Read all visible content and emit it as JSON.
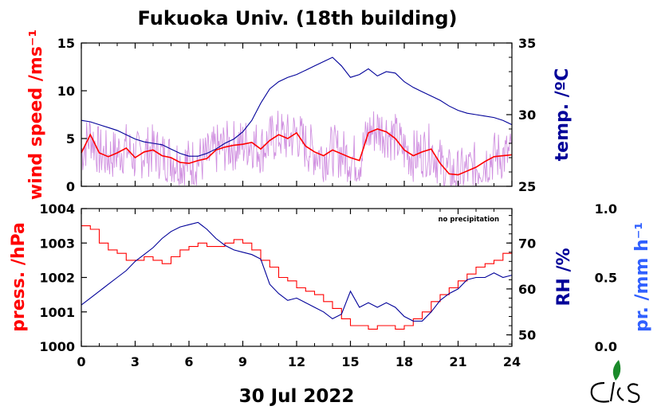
{
  "title": "Fukuoka Univ. (18th building)",
  "x_axis_label": "30 Jul 2022",
  "x_ticks": [
    "0",
    "3",
    "6",
    "9",
    "12",
    "15",
    "18",
    "21",
    "24"
  ],
  "colors": {
    "wind": "#ff0000",
    "wind_raw": "#d090e0",
    "temp": "#000099",
    "pressure": "#ff0000",
    "rh": "#000099",
    "precip": "#3060ff"
  },
  "logo": "CKES",
  "chart_data": [
    {
      "type": "line",
      "panel": "top",
      "xlim": [
        0,
        24
      ],
      "left_axis": {
        "label": "wind speed /ms⁻¹",
        "ylim": [
          0,
          15
        ],
        "ticks": [
          "0",
          "5",
          "10",
          "15"
        ]
      },
      "right_axis": {
        "label": "temp. /ºC",
        "ylim": [
          25,
          35
        ],
        "ticks": [
          "25",
          "30",
          "35"
        ]
      },
      "series": [
        {
          "axis": "left",
          "color": "#ff0000",
          "x": [
            0,
            0.5,
            1,
            1.5,
            2,
            2.5,
            3,
            3.5,
            4,
            4.5,
            5,
            5.5,
            6,
            6.5,
            7,
            7.5,
            8,
            8.5,
            9,
            9.5,
            10,
            10.5,
            11,
            11.5,
            12,
            12.5,
            13,
            13.5,
            14,
            14.5,
            15,
            15.5,
            16,
            16.5,
            17,
            17.5,
            18,
            18.5,
            19,
            19.5,
            20,
            20.5,
            21,
            21.5,
            22,
            22.5,
            23,
            23.5,
            24
          ],
          "values": [
            3.5,
            5.4,
            3.5,
            3.1,
            3.5,
            4.0,
            3.0,
            3.6,
            3.8,
            3.2,
            3.0,
            2.5,
            2.4,
            2.7,
            2.9,
            3.8,
            4.1,
            4.3,
            4.4,
            4.6,
            3.9,
            4.8,
            5.4,
            5.0,
            5.6,
            4.2,
            3.6,
            3.2,
            3.8,
            3.4,
            3.0,
            2.7,
            5.6,
            6.0,
            5.7,
            5.0,
            3.8,
            3.2,
            3.6,
            3.9,
            2.4,
            1.3,
            1.2,
            1.6,
            2.0,
            2.6,
            3.1,
            3.2,
            3.3
          ]
        },
        {
          "axis": "right",
          "color": "#000099",
          "x": [
            0,
            0.5,
            1,
            1.5,
            2,
            2.5,
            3,
            3.5,
            4,
            4.5,
            5,
            5.5,
            6,
            6.5,
            7,
            7.5,
            8,
            8.5,
            9,
            9.5,
            10,
            10.5,
            11,
            11.5,
            12,
            12.5,
            13,
            13.5,
            14,
            14.5,
            15,
            15.5,
            16,
            16.5,
            17,
            17.5,
            18,
            18.5,
            19,
            19.5,
            20,
            20.5,
            21,
            21.5,
            22,
            22.5,
            23,
            23.5,
            24
          ],
          "values": [
            29.6,
            29.5,
            29.3,
            29.1,
            28.9,
            28.6,
            28.3,
            28.1,
            28.0,
            27.9,
            27.6,
            27.3,
            27.1,
            27.1,
            27.3,
            27.6,
            28.0,
            28.3,
            28.8,
            29.6,
            30.8,
            31.8,
            32.3,
            32.6,
            32.8,
            33.1,
            33.4,
            33.7,
            34.0,
            33.4,
            32.6,
            32.8,
            33.2,
            32.7,
            33.0,
            32.9,
            32.3,
            31.9,
            31.6,
            31.3,
            31.0,
            30.6,
            30.3,
            30.1,
            30.0,
            29.9,
            29.8,
            29.6,
            29.3
          ]
        }
      ]
    },
    {
      "type": "line",
      "panel": "bottom",
      "xlim": [
        0,
        24
      ],
      "left_axis": {
        "label": "press. /hPa",
        "ylim": [
          1000,
          1004
        ],
        "ticks": [
          "1000",
          "1001",
          "1002",
          "1003",
          "1004"
        ]
      },
      "right_axis": {
        "label": "RH /%",
        "ylim": [
          47.5,
          77.5
        ],
        "ticks": [
          "50",
          "60",
          "70"
        ]
      },
      "precip_axis": {
        "label": "pr. /mm h⁻¹",
        "ylim": [
          0,
          1
        ],
        "ticks": [
          "0.0",
          "0.5",
          "1.0"
        ]
      },
      "annotation": "no precipitation",
      "series": [
        {
          "axis": "left",
          "color": "#ff0000",
          "x": [
            0,
            0.5,
            1,
            1.5,
            2,
            2.5,
            3,
            3.5,
            4,
            4.5,
            5,
            5.5,
            6,
            6.5,
            7,
            7.5,
            8,
            8.5,
            9,
            9.5,
            10,
            10.5,
            11,
            11.5,
            12,
            12.5,
            13,
            13.5,
            14,
            14.5,
            15,
            15.5,
            16,
            16.5,
            17,
            17.5,
            18,
            18.5,
            19,
            19.5,
            20,
            20.5,
            21,
            21.5,
            22,
            22.5,
            23,
            23.5,
            24
          ],
          "values": [
            1003.5,
            1003.4,
            1003.0,
            1002.8,
            1002.7,
            1002.5,
            1002.5,
            1002.6,
            1002.5,
            1002.4,
            1002.6,
            1002.8,
            1002.9,
            1003.0,
            1002.9,
            1002.9,
            1003.0,
            1003.1,
            1003.0,
            1002.8,
            1002.5,
            1002.3,
            1002.0,
            1001.9,
            1001.7,
            1001.6,
            1001.5,
            1001.3,
            1001.1,
            1000.8,
            1000.6,
            1000.6,
            1000.5,
            1000.6,
            1000.6,
            1000.5,
            1000.6,
            1000.8,
            1001.0,
            1001.3,
            1001.5,
            1001.7,
            1001.9,
            1002.1,
            1002.3,
            1002.4,
            1002.5,
            1002.7,
            1002.8
          ]
        },
        {
          "axis": "right",
          "color": "#000099",
          "x": [
            0,
            0.5,
            1,
            1.5,
            2,
            2.5,
            3,
            3.5,
            4,
            4.5,
            5,
            5.5,
            6,
            6.5,
            7,
            7.5,
            8,
            8.5,
            9,
            9.5,
            10,
            10.5,
            11,
            11.5,
            12,
            12.5,
            13,
            13.5,
            14,
            14.5,
            15,
            15.5,
            16,
            16.5,
            17,
            17.5,
            18,
            18.5,
            19,
            19.5,
            20,
            20.5,
            21,
            21.5,
            22,
            22.5,
            23,
            23.5,
            24
          ],
          "values": [
            56.5,
            58.0,
            59.5,
            61.0,
            62.5,
            64.0,
            66.0,
            67.5,
            69.0,
            71.0,
            72.5,
            73.5,
            74.0,
            74.5,
            73.0,
            71.0,
            69.5,
            68.5,
            68.0,
            67.5,
            66.5,
            61.0,
            59.0,
            57.5,
            58.0,
            57.0,
            56.0,
            55.0,
            53.5,
            54.5,
            59.5,
            56.0,
            57.0,
            56.0,
            57.0,
            56.0,
            54.0,
            53.0,
            53.0,
            55.0,
            57.5,
            59.0,
            60.0,
            62.0,
            62.5,
            62.5,
            63.5,
            62.5,
            63.0
          ]
        },
        {
          "axis": "precip",
          "color": "#3060ff",
          "x": [
            0,
            24
          ],
          "values": [
            0,
            0
          ]
        }
      ]
    }
  ]
}
